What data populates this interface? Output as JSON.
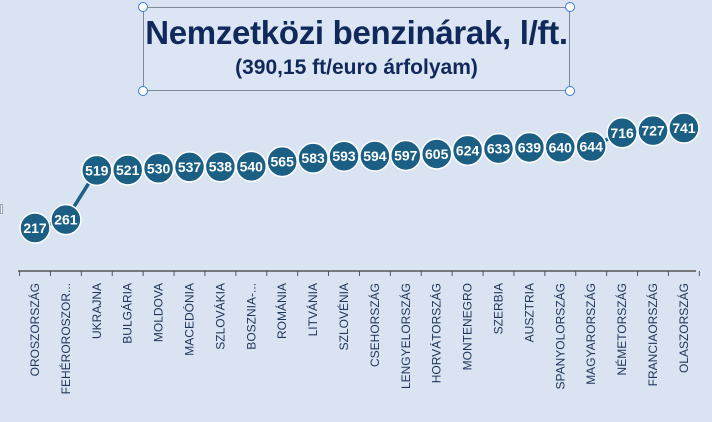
{
  "chart_data": {
    "type": "line",
    "title": "Nemzetközi benzinárak, l/ft.",
    "subtitle": "(390,15 ft/euro árfolyam)",
    "categories": [
      "OROSZORSZÁG",
      "FEHÉROROSZOR...",
      "UKRAJNA",
      "BULGÁRIA",
      "MOLDOVA",
      "MACEDÓNIA",
      "SZLOVÁKIA",
      "BOSZNIA-...",
      "ROMÁNIA",
      "LITVÁNIA",
      "SZLOVÉNIA",
      "CSEHORSZÁG",
      "LENGYELORSZÁG",
      "HORVÁTORSZÁG",
      "MONTENEGRO",
      "SZERBIA",
      "AUSZTRIA",
      "SPANYOLORSZÁG",
      "MAGYARORSZÁG",
      "NÉMETORSZÁG",
      "FRANCIAORSZÁG",
      "OLASZORSZÁG"
    ],
    "values": [
      217,
      261,
      519,
      521,
      530,
      537,
      538,
      540,
      565,
      583,
      593,
      594,
      597,
      605,
      624,
      633,
      639,
      640,
      644,
      716,
      727,
      741
    ],
    "data_labels": [
      "217",
      "261",
      "519",
      "521",
      "530",
      "537",
      "538",
      "540",
      "565",
      "583",
      "593",
      "594",
      "597",
      "605",
      "624",
      "633",
      "639",
      "640",
      "644",
      "716",
      "727",
      "741"
    ],
    "xlabel": "",
    "ylabel": "",
    "ylim": [
      200,
      760
    ],
    "grid": false,
    "legend": "none"
  },
  "colors": {
    "background": "#d9e3f2",
    "line": "#1f6086",
    "marker": "#1b5f85",
    "marker_stroke": "#ffffff",
    "label": "#ffffff",
    "axis": "#555555",
    "tick_label": "#1f3557",
    "title": "#10285a"
  }
}
